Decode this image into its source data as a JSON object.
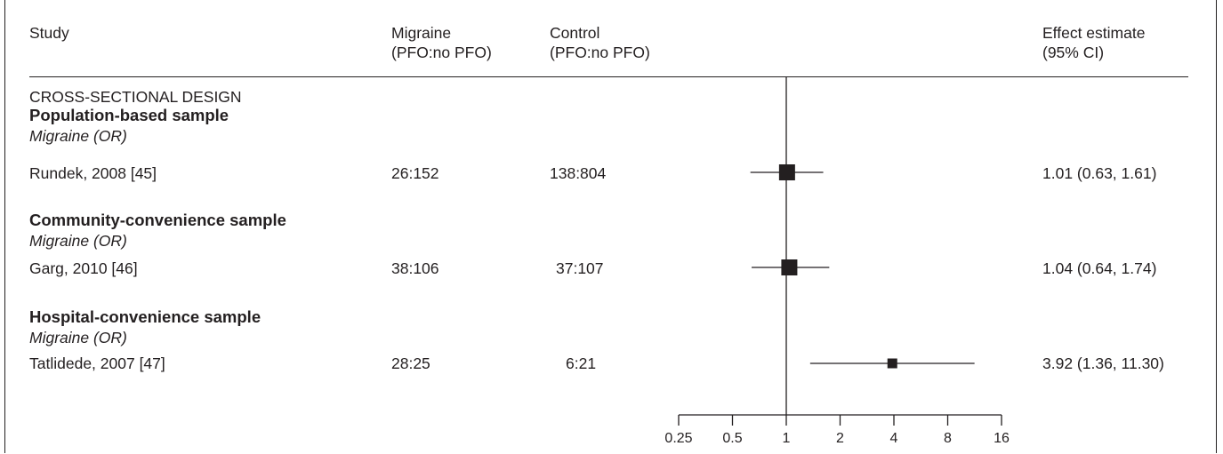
{
  "headers": {
    "study": "Study",
    "migraine_line1": "Migraine",
    "migraine_line2": "(PFO:no PFO)",
    "control_line1": "Control",
    "control_line2": "(PFO:no PFO)",
    "effect_line1": "Effect estimate",
    "effect_line2": "(95% CI)"
  },
  "design_label": "CROSS-SECTIONAL DESIGN",
  "groups": [
    {
      "heading": "Population-based sample",
      "subheading": "Migraine (OR)",
      "study": "Rundek, 2008 [45]",
      "migraine": "26:152",
      "control": "138:804",
      "estimate": "1.01 (0.63, 1.61)"
    },
    {
      "heading": "Community-convenience sample",
      "subheading": "Migraine (OR)",
      "study": "Garg, 2010 [46]",
      "migraine": "38:106",
      "control": "37:107",
      "estimate": "1.04 (0.64, 1.74)"
    },
    {
      "heading": "Hospital-convenience sample",
      "subheading": "Migraine (OR)",
      "study": "Tatlidede, 2007 [47]",
      "migraine": "28:25",
      "control": "6:21",
      "estimate": "3.92 (1.36, 11.30)"
    }
  ],
  "chart_data": {
    "type": "forest",
    "scale": "log2",
    "reference_line": 1,
    "xlim": [
      0.25,
      16
    ],
    "ticks": [
      0.25,
      0.5,
      1,
      2,
      4,
      8,
      16
    ],
    "tick_labels": [
      "0.25",
      "0.5",
      "1",
      "2",
      "4",
      "8",
      "16"
    ],
    "series": [
      {
        "label": "Rundek, 2008 [45]",
        "estimate": 1.01,
        "lower": 0.63,
        "upper": 1.61,
        "weight": "large"
      },
      {
        "label": "Garg, 2010 [46]",
        "estimate": 1.04,
        "lower": 0.64,
        "upper": 1.74,
        "weight": "large"
      },
      {
        "label": "Tatlidede, 2007 [47]",
        "estimate": 3.92,
        "lower": 1.36,
        "upper": 11.3,
        "weight": "small"
      }
    ],
    "colors": {
      "ink": "#231f20"
    }
  }
}
